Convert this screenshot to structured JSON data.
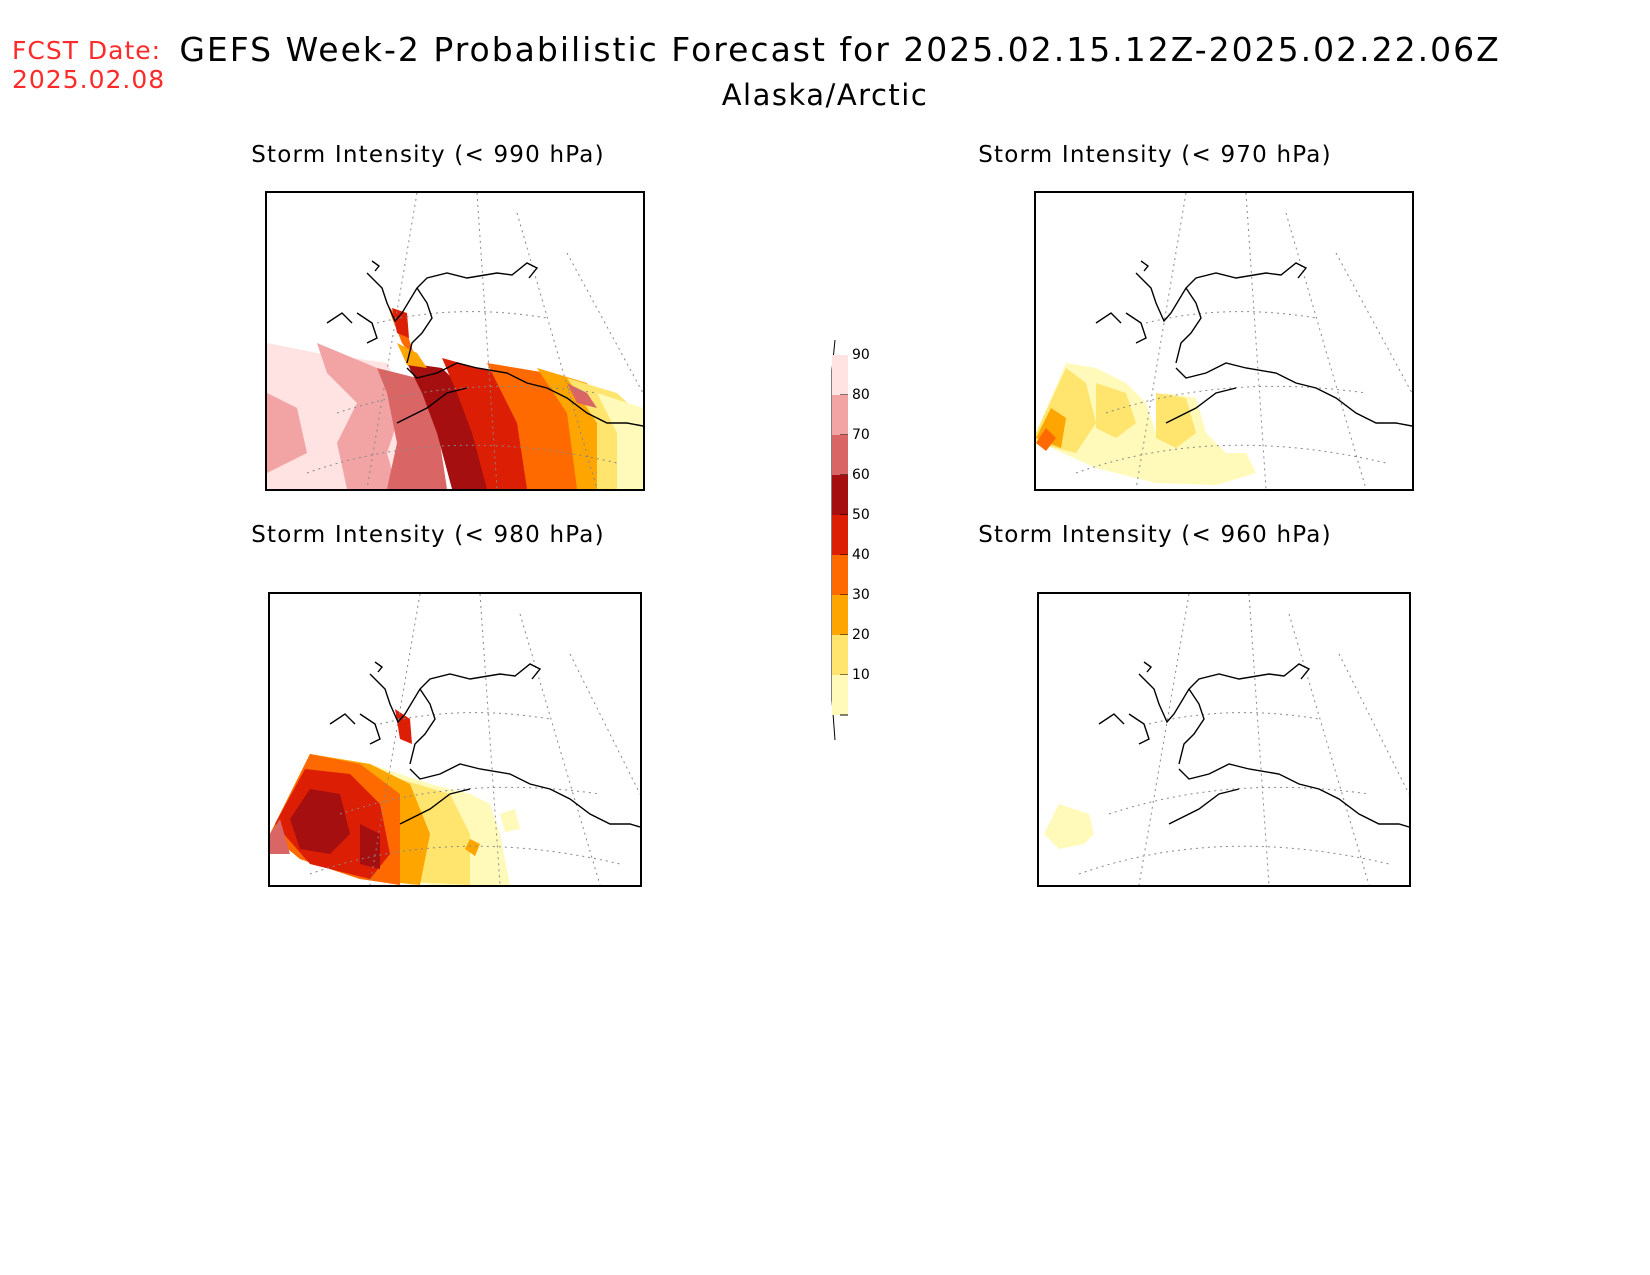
{
  "header": {
    "fcst_label": "FCST Date:",
    "fcst_date": "2025.02.08",
    "title": "GEFS Week-2 Probabilistic Forecast for 2025.02.15.12Z-2025.02.22.06Z",
    "subtitle": "Alaska/Arctic"
  },
  "panels": [
    {
      "id": "p990",
      "title": "Storm Intensity (< 990 hPa)"
    },
    {
      "id": "p970",
      "title": "Storm Intensity (< 970 hPa)"
    },
    {
      "id": "p980",
      "title": "Storm Intensity (< 980 hPa)"
    },
    {
      "id": "p960",
      "title": "Storm Intensity (< 960 hPa)"
    }
  ],
  "legend": {
    "labels": [
      "90",
      "80",
      "70",
      "60",
      "50",
      "40",
      "30",
      "20",
      "10"
    ],
    "colors": [
      "#ffe2e2",
      "#f2a4a4",
      "#d96565",
      "#a50f0f",
      "#dc1e05",
      "#ff6a00",
      "#ffa500",
      "#ffe46e",
      "#fffab9"
    ]
  }
}
